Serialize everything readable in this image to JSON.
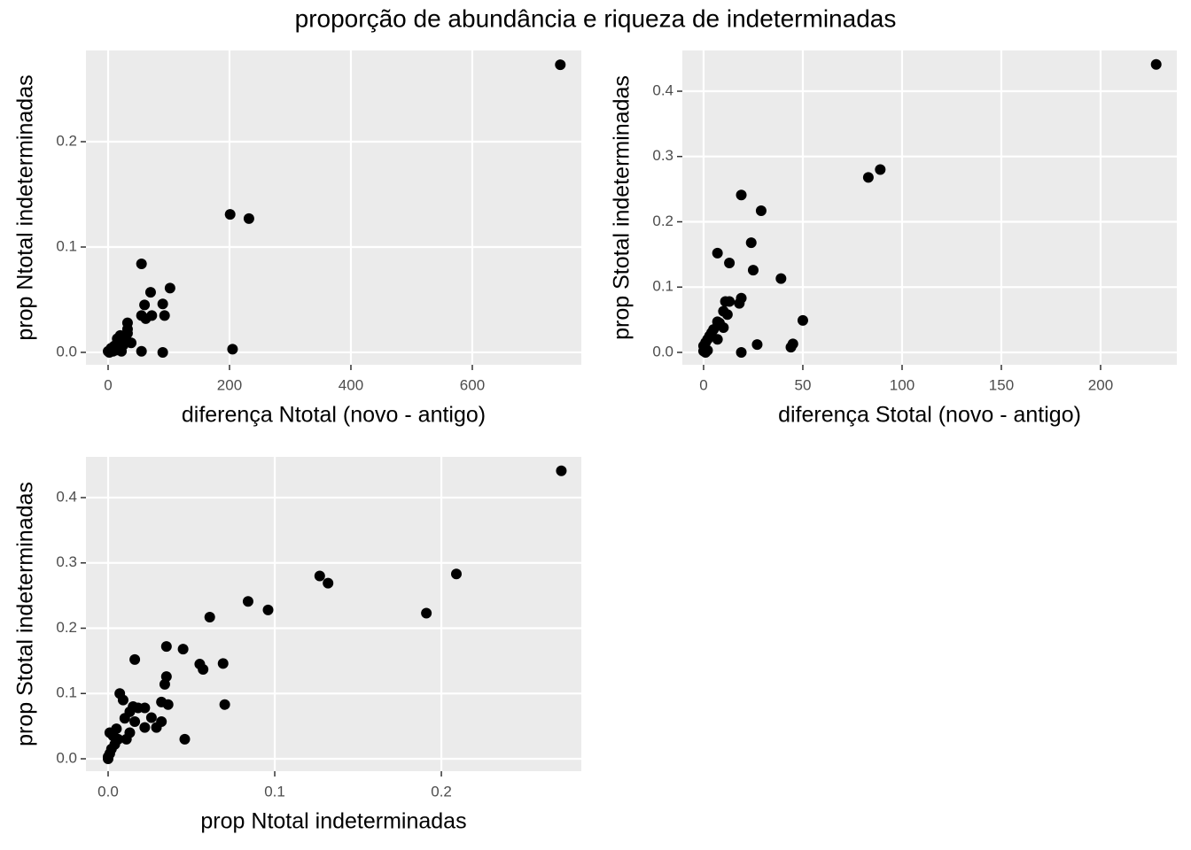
{
  "title": "proporção de abundância e riqueza de indeterminadas",
  "chart_data": [
    {
      "type": "scatter",
      "x_label": "diferença Ntotal (novo - antigo)",
      "y_label": "prop Ntotal indeterminadas",
      "color": "#000000",
      "grid": true,
      "xlim": [
        -36.5,
        779.6
      ],
      "ylim": [
        -0.0118,
        0.2866
      ],
      "xticks": [
        0,
        200,
        400,
        600
      ],
      "yticks": [
        {
          "value": 0,
          "label": "0.0"
        },
        0.1,
        0.2
      ],
      "x": [
        745,
        201,
        232,
        205,
        55,
        102,
        70,
        60,
        90,
        93,
        72,
        55,
        62,
        32,
        32,
        32,
        20,
        15,
        38,
        25,
        10,
        5,
        0,
        8,
        22,
        55,
        90,
        12,
        2,
        30
      ],
      "y": [
        0.273,
        0.131,
        0.127,
        0.003,
        0.084,
        0.061,
        0.057,
        0.045,
        0.046,
        0.035,
        0.035,
        0.035,
        0.032,
        0.028,
        0.022,
        0.018,
        0.016,
        0.013,
        0.009,
        0.007,
        0.006,
        0.004,
        0.001,
        0.001,
        0.001,
        0.001,
        0.0,
        0.002,
        0.0,
        0.012
      ]
    },
    {
      "type": "scatter",
      "x_label": "diferença Stotal (novo - antigo)",
      "y_label": "prop Stotal indeterminadas",
      "color": "#000000",
      "grid": true,
      "xlim": [
        -10.7,
        238.4
      ],
      "ylim": [
        -0.019,
        0.4624
      ],
      "xticks": [
        0,
        50,
        100,
        150,
        200
      ],
      "yticks": [
        {
          "value": 0,
          "label": "0.0"
        },
        0.1,
        0.2,
        0.3,
        0.4
      ],
      "x": [
        228,
        89,
        83,
        19,
        29,
        24,
        7,
        13,
        25,
        39,
        19,
        11,
        13,
        18,
        12,
        10,
        50,
        7,
        8,
        10,
        5,
        4,
        3,
        2,
        1,
        0,
        0,
        2,
        7,
        27,
        45,
        44,
        19,
        1
      ],
      "y": [
        0.441,
        0.28,
        0.268,
        0.241,
        0.217,
        0.168,
        0.152,
        0.137,
        0.126,
        0.113,
        0.083,
        0.078,
        0.078,
        0.075,
        0.058,
        0.063,
        0.049,
        0.047,
        0.045,
        0.038,
        0.035,
        0.03,
        0.025,
        0.02,
        0.015,
        0.01,
        0.002,
        0.003,
        0.02,
        0.012,
        0.013,
        0.008,
        0.0,
        0.0
      ]
    },
    {
      "type": "scatter",
      "x_label": "prop Ntotal indeterminadas",
      "y_label": "prop Stotal indeterminadas",
      "color": "#000000",
      "grid": true,
      "xlim": [
        -0.0133,
        0.284
      ],
      "ylim": [
        -0.019,
        0.4624
      ],
      "xticks": [
        {
          "value": 0,
          "label": "0.0"
        },
        0.1,
        0.2
      ],
      "yticks": [
        {
          "value": 0,
          "label": "0.0"
        },
        0.1,
        0.2,
        0.3,
        0.4
      ],
      "x": [
        0.272,
        0.209,
        0.191,
        0.127,
        0.132,
        0.084,
        0.096,
        0.061,
        0.035,
        0.045,
        0.016,
        0.055,
        0.069,
        0.057,
        0.035,
        0.034,
        0.007,
        0.009,
        0.032,
        0.036,
        0.07,
        0.015,
        0.018,
        0.022,
        0.013,
        0.026,
        0.01,
        0.016,
        0.032,
        0.022,
        0.029,
        0.013,
        0.011,
        0.046,
        0.005,
        0.001,
        0.003,
        0.006,
        0.004,
        0.002,
        0.001,
        0.0,
        0.0
      ],
      "y": [
        0.441,
        0.283,
        0.223,
        0.28,
        0.269,
        0.241,
        0.228,
        0.217,
        0.172,
        0.168,
        0.152,
        0.145,
        0.146,
        0.137,
        0.126,
        0.114,
        0.1,
        0.09,
        0.087,
        0.083,
        0.083,
        0.08,
        0.078,
        0.078,
        0.072,
        0.063,
        0.062,
        0.057,
        0.057,
        0.048,
        0.048,
        0.04,
        0.03,
        0.03,
        0.046,
        0.04,
        0.035,
        0.03,
        0.022,
        0.015,
        0.008,
        0.0,
        0.003
      ]
    }
  ]
}
